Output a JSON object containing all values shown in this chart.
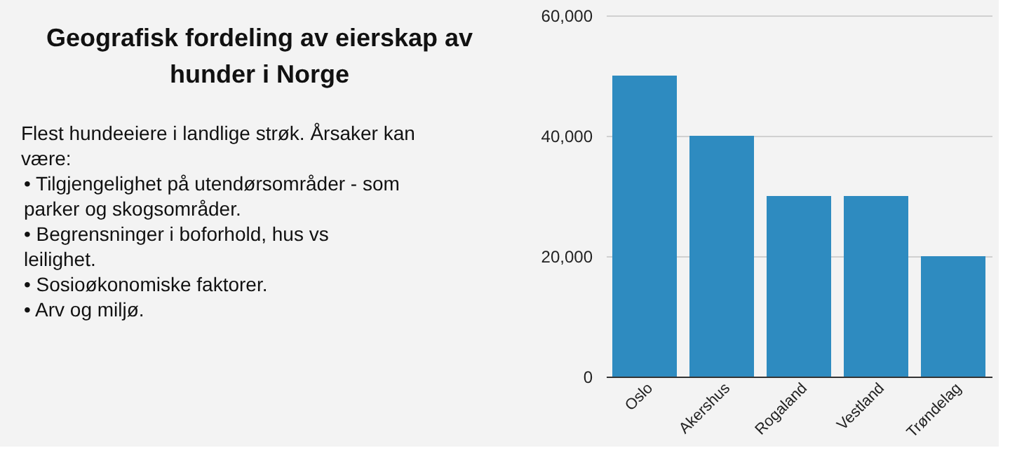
{
  "chart_data": {
    "type": "bar",
    "title": "Geografisk fordeling av eierskap av hunder i Norge",
    "annotations": [
      "Flest hundeeiere i landlige strøk. Årsaker kan være:",
      "• Tilgjengelighet på utendørsområder - som parker og skogsområder.",
      "• Begrensninger i boforhold, hus vs leilighet.",
      "• Sosioøkonomiske faktorer.",
      "• Arv og miljø."
    ],
    "categories": [
      "Oslo",
      "Akershus",
      "Rogaland",
      "Vestland",
      "Trøndelag"
    ],
    "values": [
      50000,
      40000,
      30000,
      30000,
      20000
    ],
    "color": "#2e8bc0",
    "ylim": [
      0,
      60000
    ],
    "yticks": [
      0,
      {
        "value": 20000,
        "label": "20,000"
      },
      {
        "value": 40000,
        "label": "40,000"
      },
      {
        "value": 60000,
        "label": "60,000"
      }
    ],
    "grid": "y"
  }
}
